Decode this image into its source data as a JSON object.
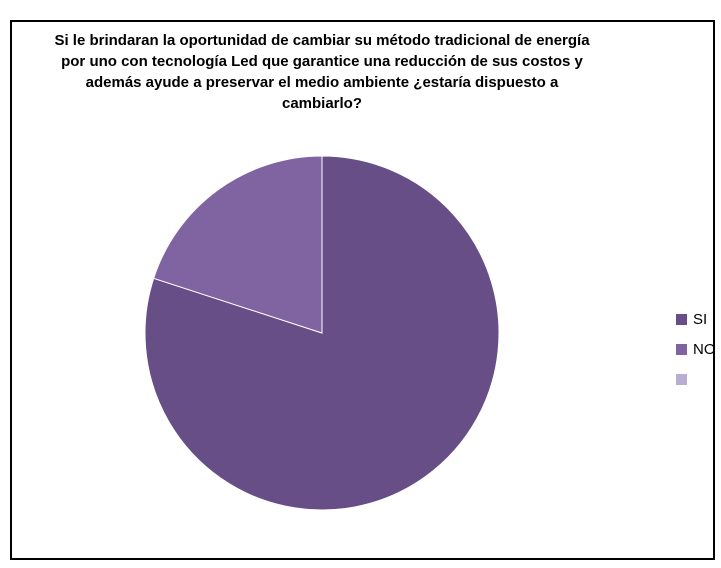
{
  "chart_data": {
    "type": "pie",
    "title": "Si le brindaran la oportunidad de cambiar su método tradicional de energía por uno con tecnología Led que garantice una reducción de sus costos y además ayude a preservar el medio ambiente ¿estaría dispuesto a cambiarlo?",
    "categories": [
      "SI",
      "NO",
      ""
    ],
    "values": [
      80,
      20,
      0
    ],
    "colors": [
      "#674e86",
      "#8064a2",
      "#b9aed0"
    ],
    "start_angle_deg": 0,
    "direction": "clockwise",
    "legend_position": "right"
  }
}
